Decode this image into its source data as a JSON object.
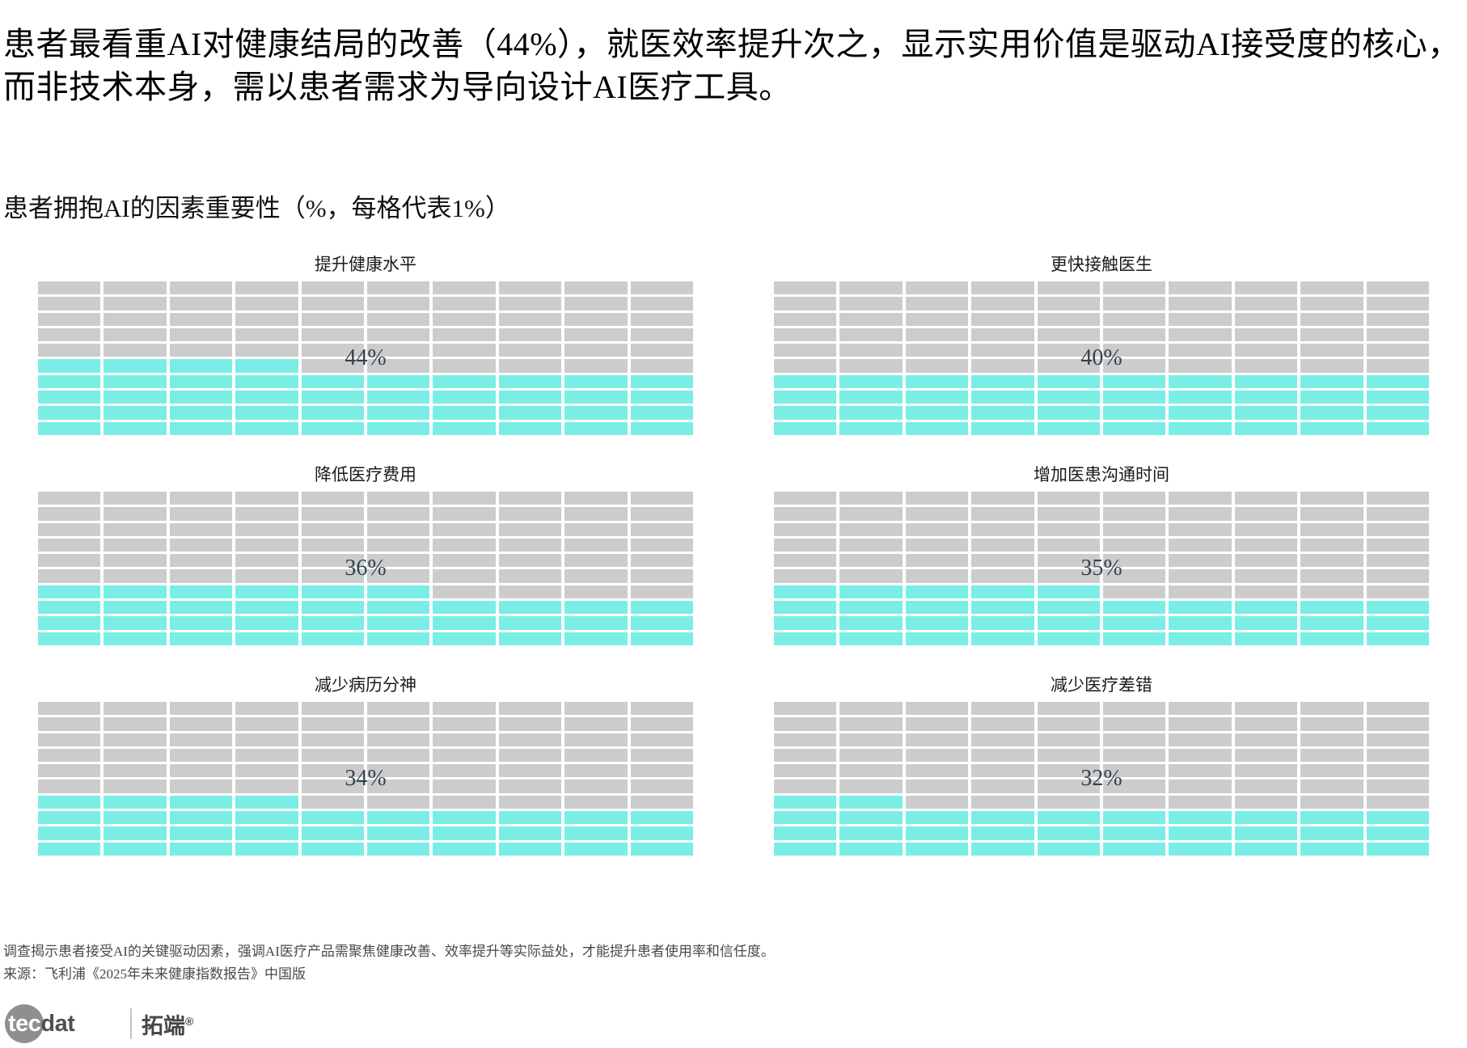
{
  "header": {
    "title": "患者最看重AI对健康结局的改善（44%），就医效率提升次之，显示实用价值是驱动AI接受度的核心，而非技术本身，需以患者需求为导向设计AI医疗工具。",
    "subtitle": "患者拥抱AI的因素重要性（%，每格代表1%）"
  },
  "chart_data": {
    "type": "waffle",
    "title": "患者拥抱AI的因素重要性",
    "unit_note": "每格代表1%",
    "grid": {
      "rows": 10,
      "cols": 10,
      "fill_origin": "bottom-left"
    },
    "categories": [
      "提升健康水平",
      "更快接触医生",
      "降低医疗费用",
      "增加医患沟通时间",
      "减少病历分神",
      "减少医疗差错"
    ],
    "values": [
      44,
      40,
      36,
      35,
      34,
      32
    ],
    "charts": [
      {
        "title": "提升健康水平",
        "value": 44,
        "label": "44%"
      },
      {
        "title": "更快接触医生",
        "value": 40,
        "label": "40%"
      },
      {
        "title": "降低医疗费用",
        "value": 36,
        "label": "36%"
      },
      {
        "title": "增加医患沟通时间",
        "value": 35,
        "label": "35%"
      },
      {
        "title": "减少病历分神",
        "value": 34,
        "label": "34%"
      },
      {
        "title": "减少医疗差错",
        "value": 32,
        "label": "32%"
      }
    ],
    "colors": {
      "filled": "#7aede6",
      "empty": "#cccccc",
      "label": "#2e4453"
    },
    "legend_position": "none",
    "grid_lines": "off"
  },
  "footer": {
    "note": "调查揭示患者接受AI的关键驱动因素，强调AI医疗产品需聚焦健康改善、效率提升等实际益处，才能提升患者使用率和信任度。",
    "source": "来源：飞利浦《2025年未来健康指数报告》中国版"
  },
  "logo": {
    "tec": "tec",
    "dat": "dat",
    "cn": "拓端",
    "reg": "®"
  }
}
